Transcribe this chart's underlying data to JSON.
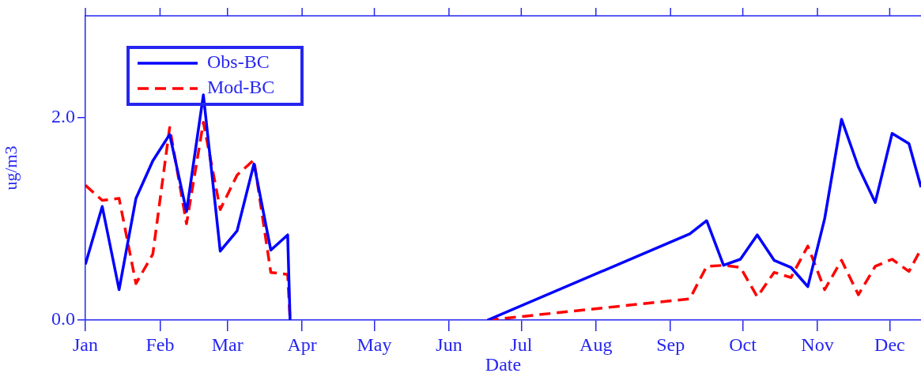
{
  "chart_data": {
    "type": "line",
    "xlabel": "Date",
    "ylabel": "ug/m3",
    "xlim": [
      "--01-01",
      "--12-14"
    ],
    "xticks": [
      {
        "value": "--01-01",
        "label": "Jan"
      },
      {
        "value": "--02-01",
        "label": "Feb"
      },
      {
        "value": "--03-01",
        "label": "Mar"
      },
      {
        "value": "--04-01",
        "label": "Apr"
      },
      {
        "value": "--05-01",
        "label": "May"
      },
      {
        "value": "--06-01",
        "label": "Jun"
      },
      {
        "value": "--07-01",
        "label": "Jul"
      },
      {
        "value": "--08-01",
        "label": "Aug"
      },
      {
        "value": "--09-01",
        "label": "Sep"
      },
      {
        "value": "--10-01",
        "label": "Oct"
      },
      {
        "value": "--11-01",
        "label": "Nov"
      },
      {
        "value": "--12-01",
        "label": "Dec"
      }
    ],
    "ylim": [
      0,
      3
    ],
    "yticks": [
      {
        "value": 0,
        "label": "0.0"
      },
      {
        "value": 2,
        "label": "2.0"
      }
    ],
    "x": [
      "--01-01",
      "--01-08",
      "--01-15",
      "--01-22",
      "--01-29",
      "--02-05",
      "--02-12",
      "--02-19",
      "--02-26",
      "--03-05",
      "--03-12",
      "--03-19",
      "--03-26",
      "--03-27",
      "--05-01",
      "--06-17",
      "--09-09",
      "--09-16",
      "--09-23",
      "--09-30",
      "--10-07",
      "--10-14",
      "--10-21",
      "--10-28",
      "--11-04",
      "--11-11",
      "--11-18",
      "--11-25",
      "--12-02",
      "--12-09",
      "--12-14"
    ],
    "series": [
      {
        "name": "Obs-BC",
        "color": "#0000ff",
        "line_style": "solid",
        "values": [
          0.55,
          1.12,
          0.3,
          1.2,
          1.57,
          1.83,
          1.07,
          2.22,
          0.68,
          0.88,
          1.54,
          0.69,
          0.84,
          0,
          null,
          0,
          0.85,
          0.98,
          0.54,
          0.6,
          0.84,
          0.59,
          0.52,
          0.33,
          1.0,
          1.98,
          1.51,
          1.16,
          1.84,
          1.74,
          1.31
        ]
      },
      {
        "name": "Mod-BC",
        "color": "#ff0000",
        "line_style": "dashed",
        "values": [
          1.33,
          1.18,
          1.2,
          0.36,
          0.65,
          1.9,
          0.95,
          1.95,
          1.09,
          1.43,
          1.58,
          0.47,
          0.45,
          0,
          null,
          0,
          0.21,
          0.53,
          0.54,
          0.52,
          0.23,
          0.47,
          0.42,
          0.73,
          0.3,
          0.59,
          0.25,
          0.53,
          0.6,
          0.48,
          0.7
        ]
      }
    ],
    "legend": "top left",
    "grid": false,
    "marker": "none"
  }
}
